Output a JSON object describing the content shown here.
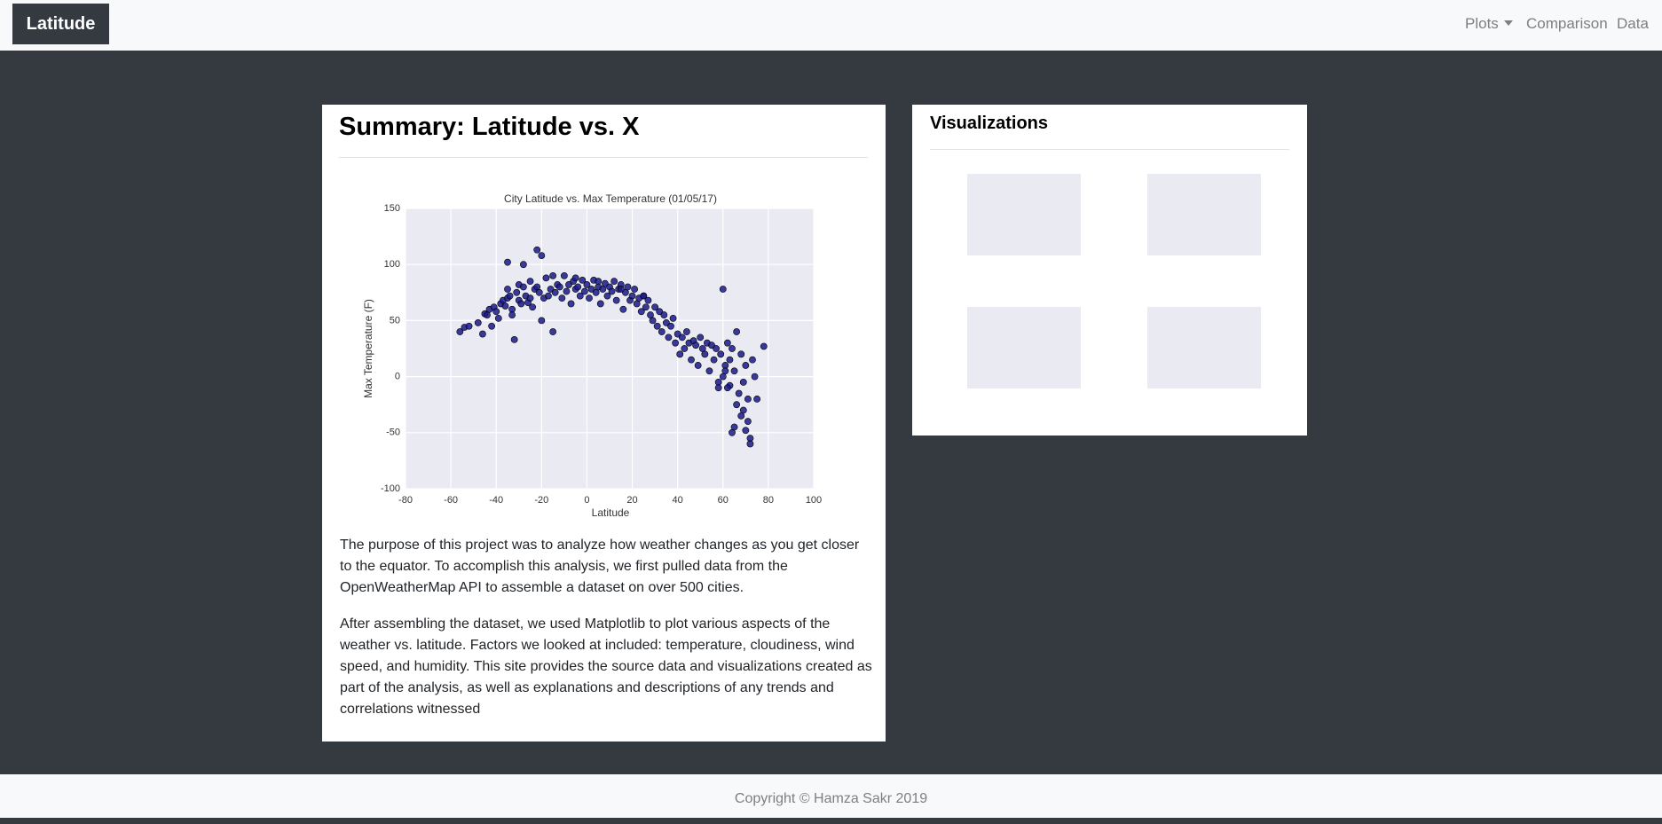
{
  "navbar": {
    "brand": "Latitude",
    "items": [
      "Plots",
      "Comparison",
      "Data"
    ]
  },
  "summary": {
    "title": "Summary: Latitude vs. X",
    "paragraphs": [
      "The purpose of this project was to analyze how weather changes as you get closer to the equator. To accomplish this analysis, we first pulled data from the OpenWeatherMap API to assemble a dataset on over 500 cities.",
      "After assembling the dataset, we used Matplotlib to plot various aspects of the weather vs. latitude. Factors we looked at included: temperature, cloudiness, wind speed, and humidity. This site provides the source data and visualizations created as part of the analysis, as well as explanations and descriptions of any trends and correlations witnessed"
    ]
  },
  "visualizations": {
    "title": "Visualizations"
  },
  "footer": "Copyright © Hamza Sakr 2019",
  "chart_data": {
    "type": "scatter",
    "title": "City Latitude vs. Max Temperature (01/05/17)",
    "x_label": "Latitude",
    "y_label": "Max Temperature (F)",
    "color": "#1a1a8c",
    "xlim": [
      -80,
      100
    ],
    "xticks": [
      -80,
      -60,
      -40,
      -20,
      0,
      20,
      40,
      60,
      80,
      100
    ],
    "ylim": [
      -100,
      150
    ],
    "yticks": [
      -100,
      -50,
      0,
      50,
      100,
      150
    ],
    "grid": true,
    "x": [
      -56,
      -54,
      -52,
      -48,
      -46,
      -45,
      -44,
      -43,
      -42,
      -41,
      -40,
      -39,
      -38,
      -37,
      -36,
      -35,
      -35,
      -34,
      -33,
      -33,
      -32,
      -31,
      -30,
      -30,
      -29,
      -28,
      -28,
      -27,
      -26,
      -25,
      -24,
      -23,
      -22,
      -22,
      -21,
      -20,
      -20,
      -19,
      -18,
      -17,
      -16,
      -15,
      -14,
      -13,
      -12,
      -11,
      -10,
      -9,
      -8,
      -7,
      -6,
      -5,
      -4,
      -3,
      -2,
      -1,
      0,
      1,
      2,
      3,
      4,
      5,
      6,
      7,
      8,
      9,
      10,
      11,
      12,
      13,
      14,
      15,
      16,
      17,
      18,
      19,
      20,
      21,
      22,
      23,
      24,
      25,
      26,
      27,
      28,
      29,
      30,
      31,
      32,
      33,
      34,
      35,
      36,
      37,
      38,
      39,
      40,
      41,
      42,
      43,
      44,
      45,
      46,
      47,
      48,
      49,
      50,
      51,
      52,
      53,
      54,
      55,
      56,
      57,
      58,
      59,
      60,
      61,
      62,
      63,
      64,
      65,
      66,
      67,
      68,
      69,
      70,
      71,
      72,
      73,
      74,
      75,
      78,
      62,
      65,
      68,
      70,
      72,
      60,
      63,
      66,
      69,
      71,
      -35,
      -25,
      -15,
      -5,
      5,
      15,
      25,
      58,
      61,
      64
    ],
    "y": [
      40,
      44,
      45,
      48,
      38,
      56,
      55,
      60,
      45,
      62,
      58,
      52,
      65,
      68,
      63,
      102,
      70,
      72,
      60,
      55,
      33,
      75,
      68,
      82,
      65,
      80,
      100,
      72,
      66,
      85,
      62,
      78,
      80,
      113,
      75,
      108,
      50,
      70,
      88,
      72,
      78,
      40,
      75,
      82,
      80,
      70,
      90,
      76,
      82,
      65,
      85,
      78,
      80,
      72,
      86,
      76,
      82,
      70,
      78,
      86,
      75,
      80,
      65,
      78,
      83,
      72,
      80,
      76,
      85,
      68,
      78,
      82,
      60,
      75,
      80,
      68,
      72,
      78,
      65,
      70,
      58,
      72,
      62,
      68,
      55,
      50,
      62,
      45,
      58,
      40,
      55,
      48,
      35,
      45,
      52,
      30,
      38,
      20,
      35,
      25,
      40,
      30,
      15,
      32,
      28,
      10,
      35,
      25,
      20,
      30,
      5,
      28,
      15,
      25,
      -5,
      20,
      78,
      10,
      30,
      -8,
      25,
      5,
      40,
      -15,
      20,
      -30,
      10,
      -40,
      -55,
      15,
      0,
      -20,
      27,
      -10,
      -45,
      -35,
      -48,
      -60,
      0,
      15,
      -25,
      -5,
      -20,
      78,
      70,
      90,
      88,
      85,
      78,
      72,
      -10,
      5,
      -50
    ]
  }
}
